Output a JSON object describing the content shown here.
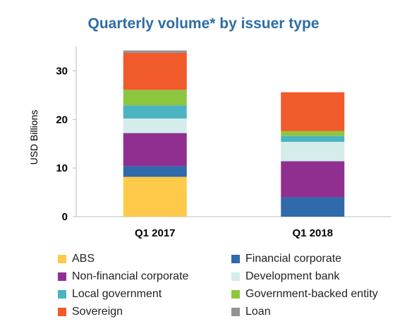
{
  "chart_data": {
    "type": "bar",
    "stacked": true,
    "title": "Quarterly volume* by issuer type",
    "ylabel": "USD Billions",
    "xlabel": "",
    "ylim": [
      0,
      35
    ],
    "yticks": [
      0,
      10,
      20,
      30
    ],
    "grid": false,
    "legend_position": "bottom",
    "categories": [
      "Q1 2017",
      "Q1 2018"
    ],
    "series": [
      {
        "name": "ABS",
        "color": "#ffc94a",
        "values": [
          8.2,
          0.0
        ]
      },
      {
        "name": "Financial corporate",
        "color": "#2f6aaa",
        "values": [
          2.2,
          4.0
        ]
      },
      {
        "name": "Non-financial corporate",
        "color": "#912f91",
        "values": [
          6.8,
          7.4
        ]
      },
      {
        "name": "Development bank",
        "color": "#d4ecea",
        "values": [
          3.0,
          4.0
        ]
      },
      {
        "name": "Local government",
        "color": "#4bb3c2",
        "values": [
          2.7,
          1.2
        ]
      },
      {
        "name": "Government-backed entity",
        "color": "#8cc63f",
        "values": [
          3.2,
          1.0
        ]
      },
      {
        "name": "Sovereign",
        "color": "#f15a2a",
        "values": [
          7.6,
          8.0
        ]
      },
      {
        "name": "Loan",
        "color": "#929297",
        "values": [
          0.5,
          0.0
        ]
      }
    ]
  }
}
